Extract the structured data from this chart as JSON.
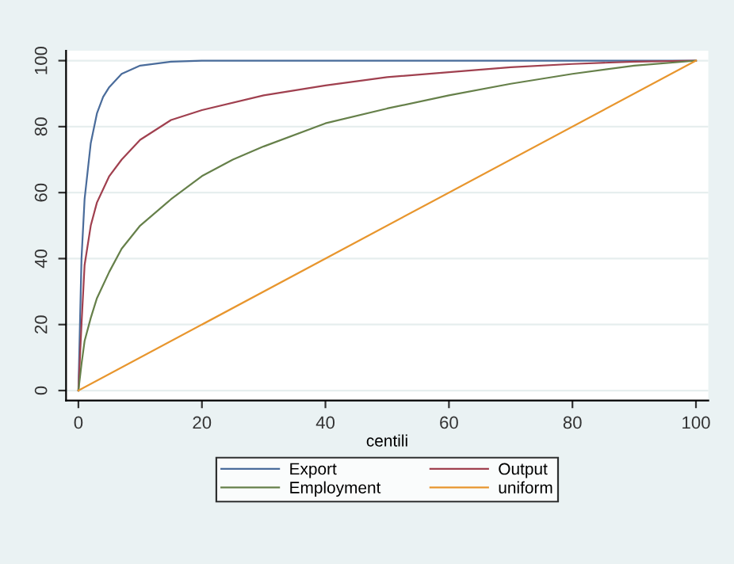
{
  "chart_data": {
    "type": "line",
    "xlabel": "centili",
    "xlim": [
      -2,
      102
    ],
    "xticks": [
      0,
      20,
      40,
      60,
      80,
      100
    ],
    "ylim": [
      -3,
      103
    ],
    "yticks": [
      0,
      20,
      40,
      60,
      80,
      100
    ],
    "grid": "y",
    "legend": "bottom",
    "line_style": "solid",
    "marker": "none",
    "series": [
      {
        "name": "Export",
        "color": "#4a6c9b",
        "x": [
          0,
          0.5,
          1,
          2,
          3,
          4,
          5,
          7,
          10,
          15,
          20,
          100
        ],
        "values": [
          0,
          40,
          58,
          75,
          84,
          89,
          92,
          96,
          98.5,
          99.7,
          100,
          100
        ]
      },
      {
        "name": "Output",
        "color": "#a0404f",
        "x": [
          0,
          0.5,
          1,
          2,
          3,
          5,
          7,
          10,
          15,
          20,
          30,
          40,
          50,
          60,
          70,
          80,
          90,
          100
        ],
        "values": [
          0,
          20,
          38,
          50,
          57,
          65,
          70,
          76,
          82,
          85,
          89.5,
          92.5,
          95,
          96.5,
          98,
          99,
          99.7,
          100
        ]
      },
      {
        "name": "Employment",
        "color": "#66804a",
        "x": [
          0,
          0.5,
          1,
          2,
          3,
          5,
          7,
          10,
          15,
          20,
          25,
          30,
          40,
          50,
          60,
          70,
          80,
          90,
          100
        ],
        "values": [
          0,
          8,
          15,
          22,
          28,
          36,
          43,
          50,
          58,
          65,
          70,
          74,
          81,
          85.5,
          89.5,
          93,
          96,
          98.5,
          100
        ]
      },
      {
        "name": "uniform",
        "color": "#e8962e",
        "x": [
          0,
          100
        ],
        "values": [
          0,
          100
        ]
      }
    ]
  }
}
